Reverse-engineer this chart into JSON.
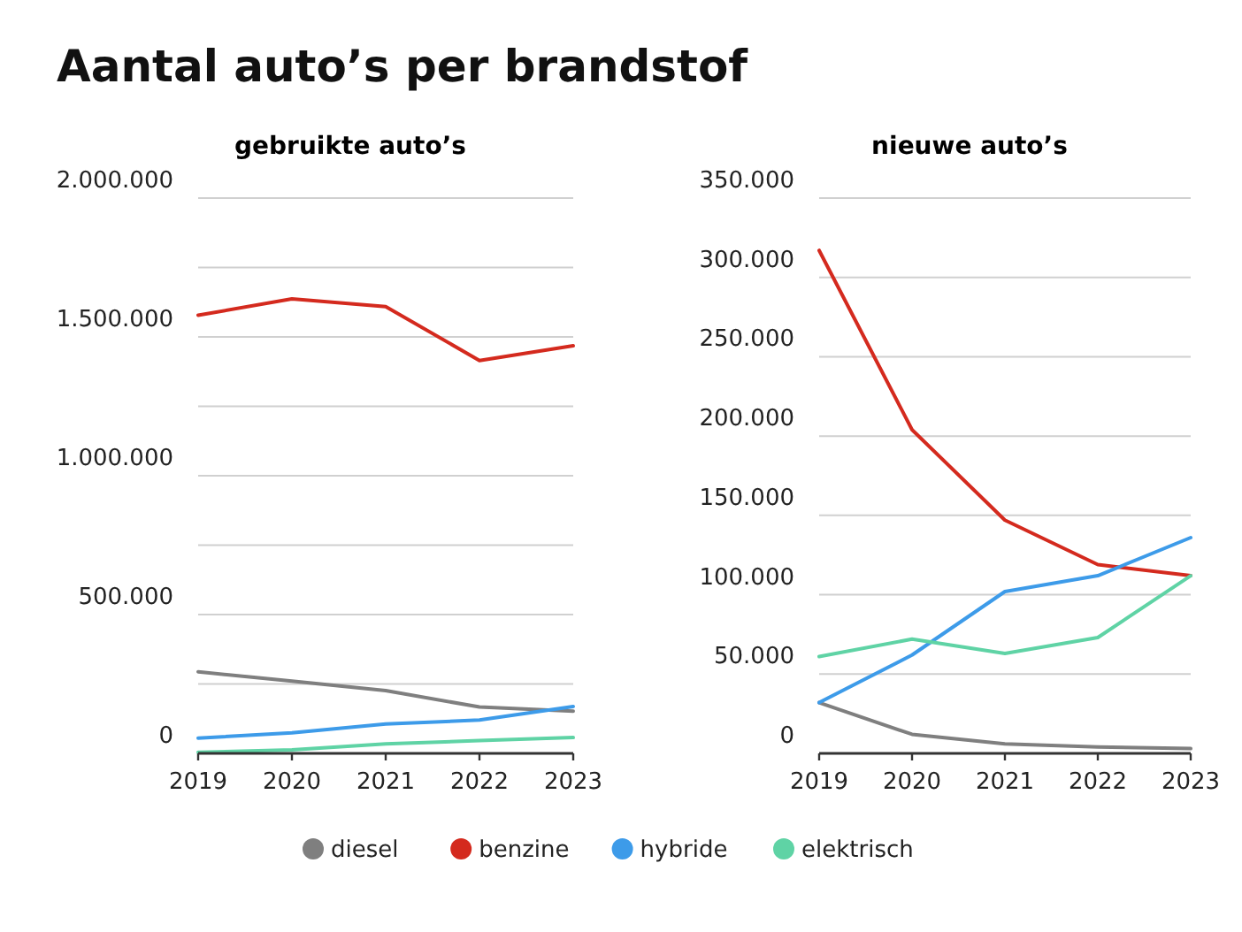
{
  "chart_data": [
    {
      "type": "line",
      "title": "Aantal auto’s per brandstof",
      "subtitle": "gebruikte auto’s",
      "x": [
        2019,
        2020,
        2021,
        2022,
        2023
      ],
      "xlim": [
        2019,
        2023
      ],
      "xticks": [
        2019,
        2020,
        2021,
        2022,
        2023
      ],
      "ylim": [
        0,
        2000000
      ],
      "yticks": [
        {
          "value": 0,
          "label": "0"
        },
        {
          "value": 250000,
          "label": null
        },
        {
          "value": 500000,
          "label": "500.000"
        },
        {
          "value": 750000,
          "label": null
        },
        {
          "value": 1000000,
          "label": "1.000.000"
        },
        {
          "value": 1250000,
          "label": null
        },
        {
          "value": 1500000,
          "label": "1.500.000"
        },
        {
          "value": 1750000,
          "label": null
        },
        {
          "value": 2000000,
          "label": "2.000.000"
        }
      ],
      "grid": "y",
      "legend": "bottom",
      "series": [
        {
          "name": "diesel",
          "color": "#7f7f7f",
          "values": [
            294000,
            260000,
            226000,
            167000,
            152000
          ]
        },
        {
          "name": "benzine",
          "color": "#d42a1e",
          "values": [
            1578000,
            1637000,
            1609000,
            1415000,
            1468000
          ]
        },
        {
          "name": "hybride",
          "color": "#3d9be9",
          "values": [
            55000,
            74000,
            106000,
            120000,
            169000
          ]
        },
        {
          "name": "elektrisch",
          "color": "#5fd3a5",
          "values": [
            4000,
            13000,
            34000,
            46000,
            57000
          ]
        }
      ]
    },
    {
      "type": "line",
      "subtitle": "nieuwe auto’s",
      "x": [
        2019,
        2020,
        2021,
        2022,
        2023
      ],
      "xlim": [
        2019,
        2023
      ],
      "xticks": [
        2019,
        2020,
        2021,
        2022,
        2023
      ],
      "ylim": [
        0,
        350000
      ],
      "yticks": [
        {
          "value": 0,
          "label": "0"
        },
        {
          "value": 50000,
          "label": "50.000"
        },
        {
          "value": 100000,
          "label": "100.000"
        },
        {
          "value": 150000,
          "label": "150.000"
        },
        {
          "value": 200000,
          "label": "200.000"
        },
        {
          "value": 250000,
          "label": "250.000"
        },
        {
          "value": 300000,
          "label": "300.000"
        },
        {
          "value": 350000,
          "label": "350.000"
        }
      ],
      "grid": "y",
      "legend": "bottom",
      "series": [
        {
          "name": "diesel",
          "color": "#7f7f7f",
          "values": [
            32000,
            12000,
            6000,
            4000,
            3000
          ]
        },
        {
          "name": "benzine",
          "color": "#d42a1e",
          "values": [
            317000,
            204000,
            147000,
            119000,
            112000
          ]
        },
        {
          "name": "hybride",
          "color": "#3d9be9",
          "values": [
            32000,
            62000,
            102000,
            112000,
            136000
          ]
        },
        {
          "name": "elektrisch",
          "color": "#5fd3a5",
          "values": [
            61000,
            72000,
            63000,
            73000,
            112000
          ]
        }
      ]
    }
  ]
}
